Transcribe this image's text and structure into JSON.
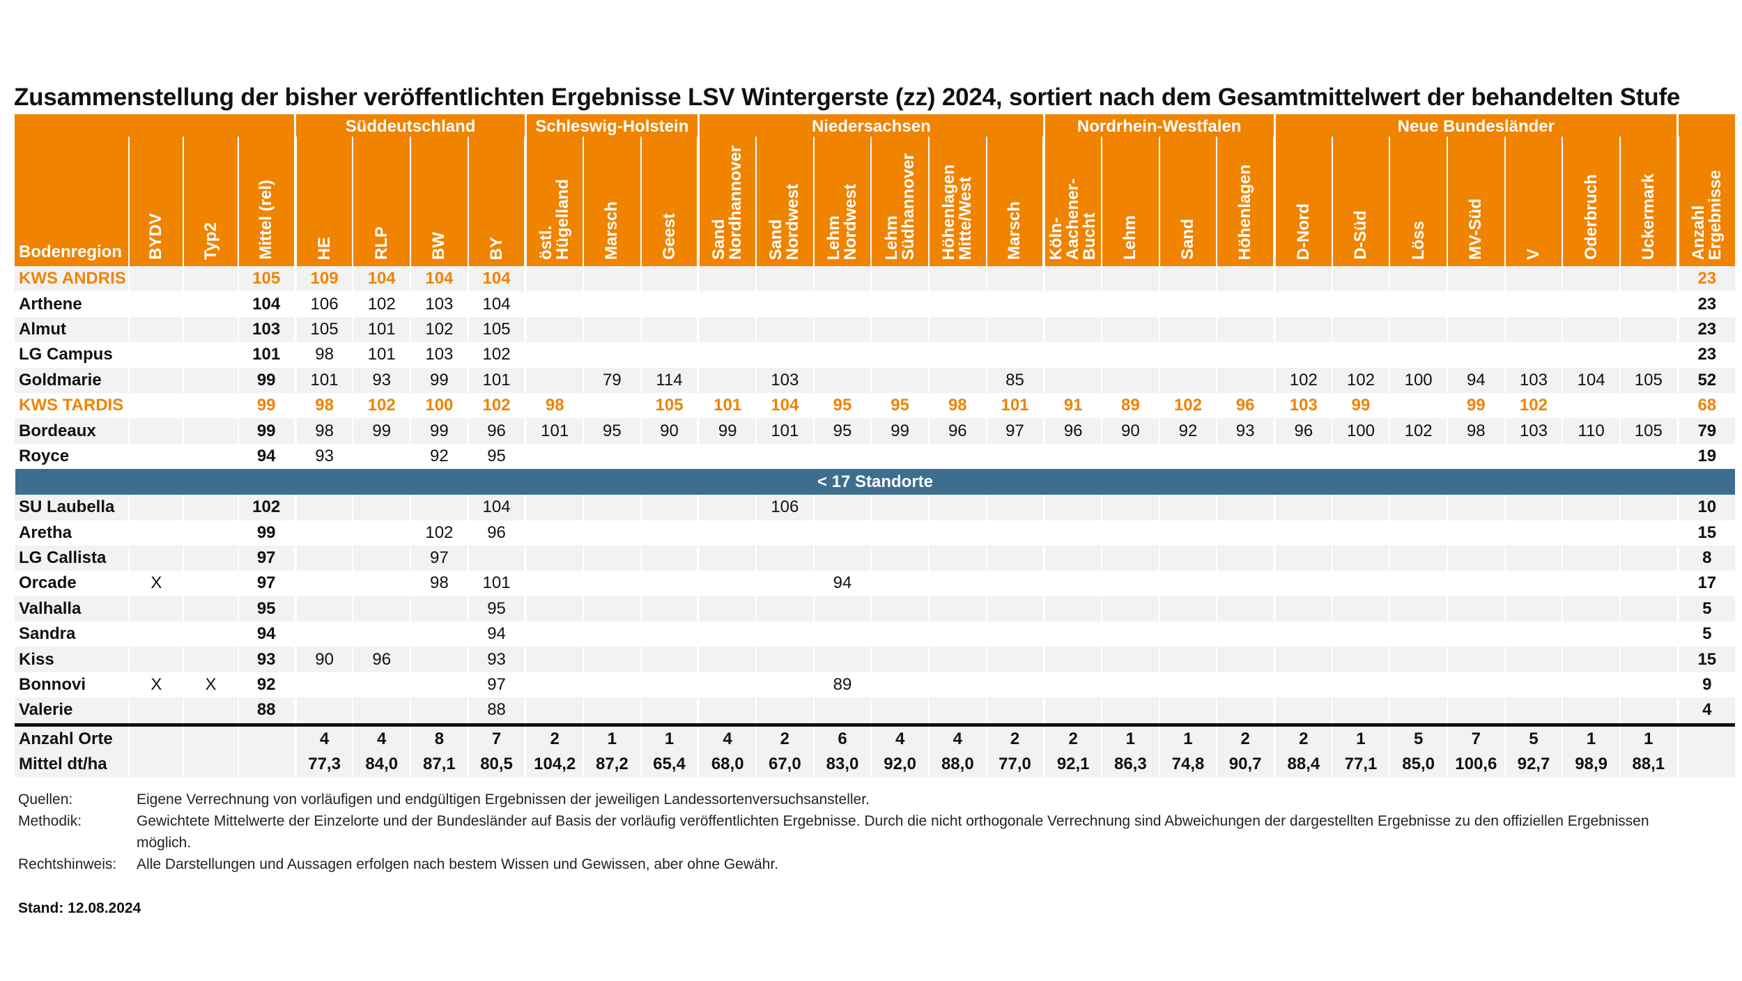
{
  "title": "Zusammenstellung der bisher veröffentlichten Ergebnisse LSV Wintergerste (zz) 2024, sortiert nach dem Gesamtmittelwert der behandelten Stufe",
  "colors": {
    "accent": "#F08300",
    "separator": "#3D6E8F",
    "stripe": "#F2F2F2"
  },
  "regions": [
    {
      "label": "",
      "span": 4
    },
    {
      "label": "Süddeutschland",
      "span": 4
    },
    {
      "label": "Schleswig-Holstein",
      "span": 3
    },
    {
      "label": "Niedersachsen",
      "span": 6
    },
    {
      "label": "Nordrhein-Westfalen",
      "span": 4
    },
    {
      "label": "Neue Bundesländer",
      "span": 7
    },
    {
      "label": "",
      "span": 1
    }
  ],
  "columns": [
    "Bodenregion",
    "BYDV",
    "Typ2",
    "Mittel (rel)",
    "HE",
    "RLP",
    "BW",
    "BY",
    "östl.\nHügelland",
    "Marsch",
    "Geest",
    "Sand\nNordhannover",
    "Sand\nNordwest",
    "Lehm\nNordwest",
    "Lehm\nSüdhannover",
    "Höhenlagen\nMitte/West",
    "Marsch",
    "Köln-\nAachener-\nBucht",
    "Lehm",
    "Sand",
    "Höhenlagen",
    "D-Nord",
    "D-Süd",
    "Löss",
    "MV-Süd",
    "V",
    "Oderbruch",
    "Uckermark",
    "Anzahl\nErgebnisse"
  ],
  "rows_main": [
    {
      "hl": true,
      "cells": [
        "KWS ANDRIS",
        "",
        "",
        "105",
        "109",
        "104",
        "104",
        "104",
        "",
        "",
        "",
        "",
        "",
        "",
        "",
        "",
        "",
        "",
        "",
        "",
        "",
        "",
        "",
        "",
        "",
        "",
        "",
        "",
        "23"
      ]
    },
    {
      "hl": false,
      "cells": [
        "Arthene",
        "",
        "",
        "104",
        "106",
        "102",
        "103",
        "104",
        "",
        "",
        "",
        "",
        "",
        "",
        "",
        "",
        "",
        "",
        "",
        "",
        "",
        "",
        "",
        "",
        "",
        "",
        "",
        "",
        "23"
      ]
    },
    {
      "hl": false,
      "cells": [
        "Almut",
        "",
        "",
        "103",
        "105",
        "101",
        "102",
        "105",
        "",
        "",
        "",
        "",
        "",
        "",
        "",
        "",
        "",
        "",
        "",
        "",
        "",
        "",
        "",
        "",
        "",
        "",
        "",
        "",
        "23"
      ]
    },
    {
      "hl": false,
      "cells": [
        "LG Campus",
        "",
        "",
        "101",
        "98",
        "101",
        "103",
        "102",
        "",
        "",
        "",
        "",
        "",
        "",
        "",
        "",
        "",
        "",
        "",
        "",
        "",
        "",
        "",
        "",
        "",
        "",
        "",
        "",
        "23"
      ]
    },
    {
      "hl": false,
      "cells": [
        "Goldmarie",
        "",
        "",
        "99",
        "101",
        "93",
        "99",
        "101",
        "",
        "79",
        "114",
        "",
        "103",
        "",
        "",
        "",
        "85",
        "",
        "",
        "",
        "",
        "102",
        "102",
        "100",
        "94",
        "103",
        "104",
        "105",
        "52"
      ]
    },
    {
      "hl": true,
      "cells": [
        "KWS TARDIS",
        "",
        "",
        "99",
        "98",
        "102",
        "100",
        "102",
        "98",
        "",
        "105",
        "101",
        "104",
        "95",
        "95",
        "98",
        "101",
        "91",
        "89",
        "102",
        "96",
        "103",
        "99",
        "",
        "99",
        "102",
        "",
        "",
        "68"
      ]
    },
    {
      "hl": false,
      "cells": [
        "Bordeaux",
        "",
        "",
        "99",
        "98",
        "99",
        "99",
        "96",
        "101",
        "95",
        "90",
        "99",
        "101",
        "95",
        "99",
        "96",
        "97",
        "96",
        "90",
        "92",
        "93",
        "96",
        "100",
        "102",
        "98",
        "103",
        "110",
        "105",
        "79"
      ]
    },
    {
      "hl": false,
      "cells": [
        "Royce",
        "",
        "",
        "94",
        "93",
        "",
        "92",
        "95",
        "",
        "",
        "",
        "",
        "",
        "",
        "",
        "",
        "",
        "",
        "",
        "",
        "",
        "",
        "",
        "",
        "",
        "",
        "",
        "",
        "19"
      ]
    }
  ],
  "separator_label": "< 17 Standorte",
  "rows_small": [
    {
      "hl": false,
      "cells": [
        "SU Laubella",
        "",
        "",
        "102",
        "",
        "",
        "",
        "104",
        "",
        "",
        "",
        "",
        "106",
        "",
        "",
        "",
        "",
        "",
        "",
        "",
        "",
        "",
        "",
        "",
        "",
        "",
        "",
        "",
        "10"
      ]
    },
    {
      "hl": false,
      "cells": [
        "Aretha",
        "",
        "",
        "99",
        "",
        "",
        "102",
        "96",
        "",
        "",
        "",
        "",
        "",
        "",
        "",
        "",
        "",
        "",
        "",
        "",
        "",
        "",
        "",
        "",
        "",
        "",
        "",
        "",
        "15"
      ]
    },
    {
      "hl": false,
      "cells": [
        "LG Callista",
        "",
        "",
        "97",
        "",
        "",
        "97",
        "",
        "",
        "",
        "",
        "",
        "",
        "",
        "",
        "",
        "",
        "",
        "",
        "",
        "",
        "",
        "",
        "",
        "",
        "",
        "",
        "",
        "8"
      ]
    },
    {
      "hl": false,
      "cells": [
        "Orcade",
        "X",
        "",
        "97",
        "",
        "",
        "98",
        "101",
        "",
        "",
        "",
        "",
        "",
        "94",
        "",
        "",
        "",
        "",
        "",
        "",
        "",
        "",
        "",
        "",
        "",
        "",
        "",
        "",
        "17"
      ]
    },
    {
      "hl": false,
      "cells": [
        "Valhalla",
        "",
        "",
        "95",
        "",
        "",
        "",
        "95",
        "",
        "",
        "",
        "",
        "",
        "",
        "",
        "",
        "",
        "",
        "",
        "",
        "",
        "",
        "",
        "",
        "",
        "",
        "",
        "",
        "5"
      ]
    },
    {
      "hl": false,
      "cells": [
        "Sandra",
        "",
        "",
        "94",
        "",
        "",
        "",
        "94",
        "",
        "",
        "",
        "",
        "",
        "",
        "",
        "",
        "",
        "",
        "",
        "",
        "",
        "",
        "",
        "",
        "",
        "",
        "",
        "",
        "5"
      ]
    },
    {
      "hl": false,
      "cells": [
        "Kiss",
        "",
        "",
        "93",
        "90",
        "96",
        "",
        "93",
        "",
        "",
        "",
        "",
        "",
        "",
        "",
        "",
        "",
        "",
        "",
        "",
        "",
        "",
        "",
        "",
        "",
        "",
        "",
        "",
        "15"
      ]
    },
    {
      "hl": false,
      "cells": [
        "Bonnovi",
        "X",
        "X",
        "92",
        "",
        "",
        "",
        "97",
        "",
        "",
        "",
        "",
        "",
        "89",
        "",
        "",
        "",
        "",
        "",
        "",
        "",
        "",
        "",
        "",
        "",
        "",
        "",
        "",
        "9"
      ]
    },
    {
      "hl": false,
      "cells": [
        "Valerie",
        "",
        "",
        "88",
        "",
        "",
        "",
        "88",
        "",
        "",
        "",
        "",
        "",
        "",
        "",
        "",
        "",
        "",
        "",
        "",
        "",
        "",
        "",
        "",
        "",
        "",
        "",
        "",
        "4"
      ]
    }
  ],
  "summary": [
    {
      "cells": [
        "Anzahl Orte",
        "",
        "",
        "",
        "4",
        "4",
        "8",
        "7",
        "2",
        "1",
        "1",
        "4",
        "2",
        "6",
        "4",
        "4",
        "2",
        "2",
        "1",
        "1",
        "2",
        "2",
        "1",
        "5",
        "7",
        "5",
        "1",
        "1",
        ""
      ]
    },
    {
      "cells": [
        "Mittel dt/ha",
        "",
        "",
        "",
        "77,3",
        "84,0",
        "87,1",
        "80,5",
        "104,2",
        "87,2",
        "65,4",
        "68,0",
        "67,0",
        "83,0",
        "92,0",
        "88,0",
        "77,0",
        "92,1",
        "86,3",
        "74,8",
        "90,7",
        "88,4",
        "77,1",
        "85,0",
        "100,6",
        "92,7",
        "98,9",
        "88,1",
        ""
      ]
    }
  ],
  "notes": [
    {
      "label": "Quellen:",
      "text": "Eigene Verrechnung von vorläufigen und endgültigen Ergebnissen der jeweiligen Landessortenversuchsansteller."
    },
    {
      "label": "Methodik:",
      "text": "Gewichtete Mittelwerte der Einzelorte und der Bundesländer auf Basis der vorläufig veröffentlichten Ergebnisse. Durch die nicht orthogonale Verrechnung sind Abweichungen der dargestellten Ergebnisse zu den offiziellen Ergebnissen möglich."
    },
    {
      "label": "Rechtshinweis:",
      "text": "Alle Darstellungen und Aussagen erfolgen nach bestem Wissen und Gewissen, aber ohne Gewähr."
    }
  ],
  "stand": "Stand: 12.08.2024"
}
